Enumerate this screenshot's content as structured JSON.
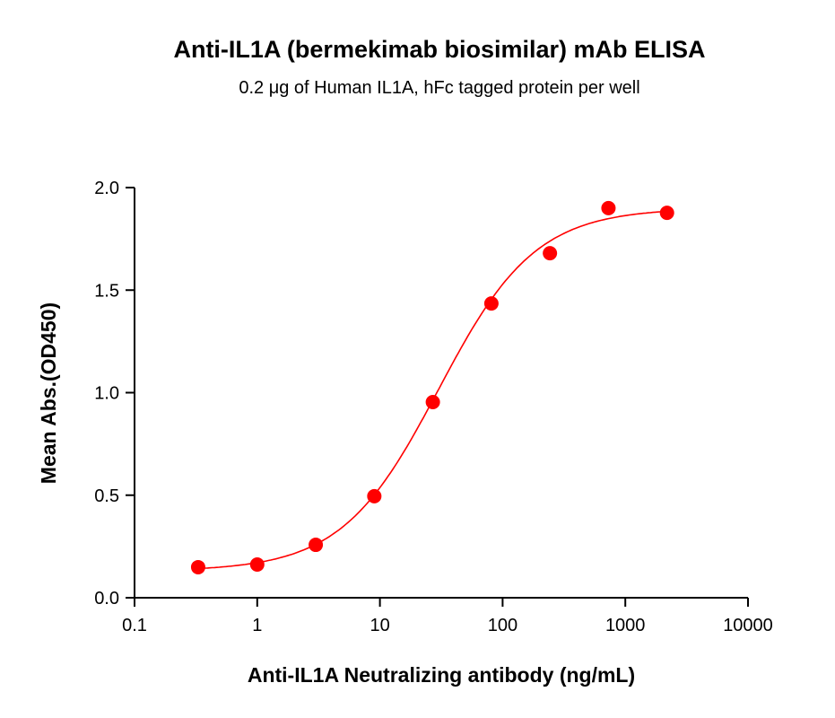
{
  "chart_data": {
    "type": "scatter",
    "title": "Anti-IL1A (bermekimab biosimilar) mAb ELISA",
    "subtitle": "0.2 μg of Human IL1A, hFc tagged protein per well",
    "xlabel": "Anti-IL1A Neutralizing antibody (ng/mL)",
    "ylabel": "Mean Abs.(OD450)",
    "xscale": "log",
    "xlim": [
      0.1,
      10000
    ],
    "ylim": [
      0,
      2.0
    ],
    "xticks": [
      "0.1",
      "1",
      "10",
      "100",
      "1000",
      "10000"
    ],
    "yticks": [
      "0.0",
      "0.5",
      "1.0",
      "1.5",
      "2.0"
    ],
    "grid": false,
    "color": "#ff0000",
    "fit_curve": "sigmoidal",
    "points": [
      {
        "x": 0.33,
        "y": 0.149
      },
      {
        "x": 1,
        "y": 0.162
      },
      {
        "x": 3,
        "y": 0.258
      },
      {
        "x": 9,
        "y": 0.495
      },
      {
        "x": 27,
        "y": 0.954
      },
      {
        "x": 81,
        "y": 1.435
      },
      {
        "x": 243,
        "y": 1.68
      },
      {
        "x": 729,
        "y": 1.9
      },
      {
        "x": 2187,
        "y": 1.877
      }
    ]
  }
}
